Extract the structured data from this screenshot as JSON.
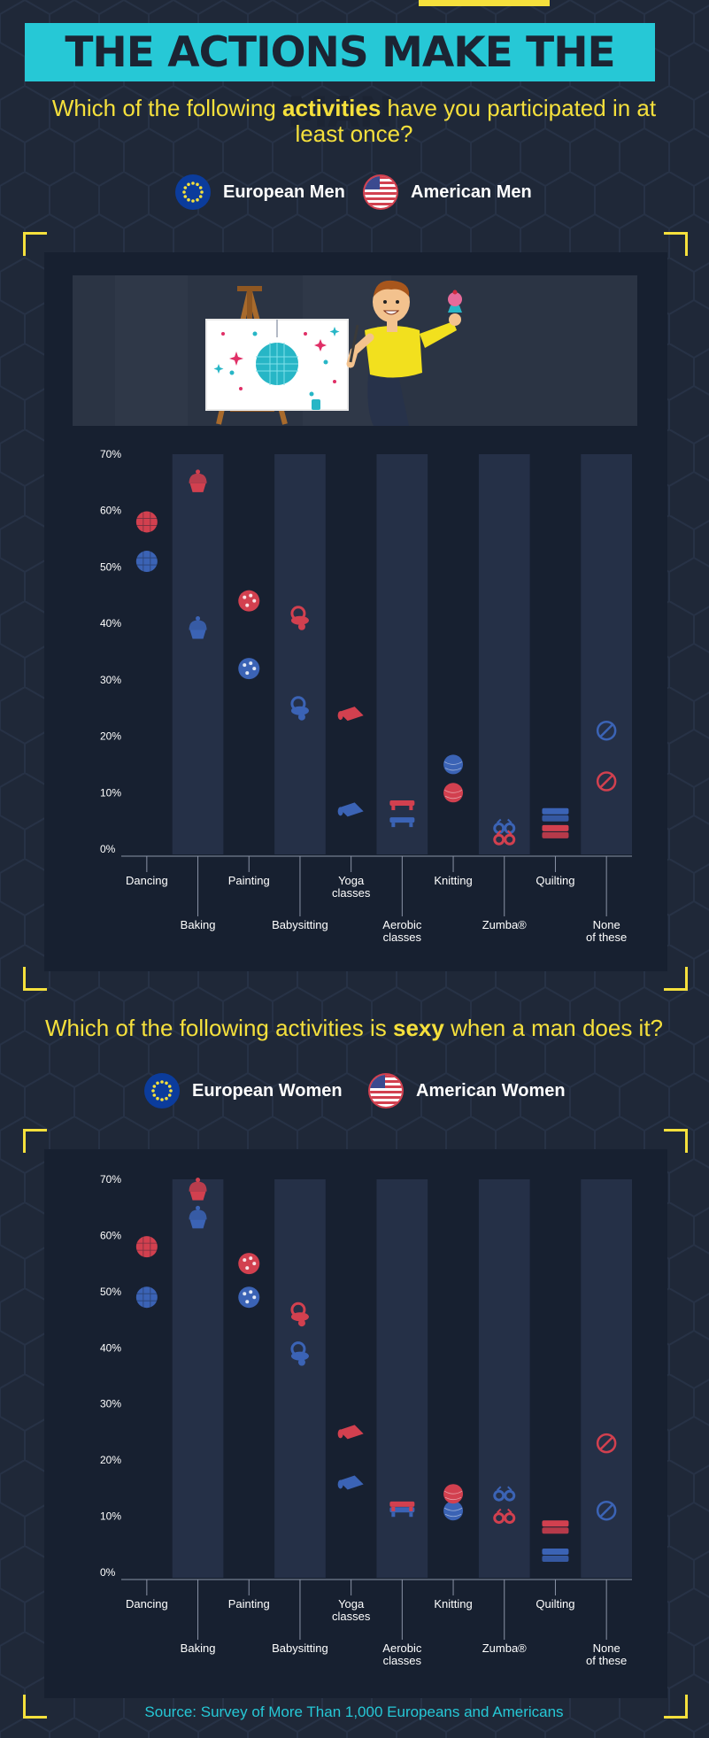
{
  "title": "THE ACTIONS MAKE THE MAN",
  "q1": {
    "pre": "Which of the following ",
    "em": "activities",
    "post": " have you participated in at least once?"
  },
  "legend1": {
    "eu": "European Men",
    "us": "American Men"
  },
  "q2": {
    "pre": "Which of the following activities is ",
    "em": "sexy",
    "post": " when a man does it?"
  },
  "legend2": {
    "eu": "European Women",
    "us": "American Women"
  },
  "source": "Source: Survey of More Than 1,000 Europeans and Americans",
  "colors": {
    "eu": "#3b63b5",
    "us": "#d2404f",
    "accent": "#f5e03c",
    "teal": "#26c8d6",
    "bg": "#1f2838",
    "panel": "#172030"
  },
  "chart_data": [
    {
      "type": "scatter",
      "title": "Which of the following activities have you participated in at least once?",
      "categories": [
        "Dancing",
        "Baking",
        "Painting",
        "Babysitting",
        "Yoga classes",
        "Aerobic classes",
        "Knitting",
        "Zumba®",
        "Quilting",
        "None of these"
      ],
      "icons": [
        "disco-ball-icon",
        "cupcake-icon",
        "palette-icon",
        "pacifier-icon",
        "yoga-mat-icon",
        "step-platform-icon",
        "yarn-ball-icon",
        "glasses-icon",
        "quilt-stack-icon",
        "none-icon"
      ],
      "yticks": [
        "0%",
        "10%",
        "20%",
        "30%",
        "40%",
        "50%",
        "60%",
        "70%"
      ],
      "ylim": [
        0,
        70
      ],
      "grid": false,
      "legend": "top",
      "series": [
        {
          "name": "European Men",
          "values": [
            51,
            39,
            32,
            25,
            7,
            5,
            15,
            4,
            6,
            21
          ]
        },
        {
          "name": "American Men",
          "values": [
            58,
            65,
            44,
            41,
            24,
            8,
            10,
            2,
            3,
            12
          ]
        }
      ]
    },
    {
      "type": "scatter",
      "title": "Which of the following activities is sexy when a man does it?",
      "categories": [
        "Dancing",
        "Baking",
        "Painting",
        "Babysitting",
        "Yoga classes",
        "Aerobic classes",
        "Knitting",
        "Zumba®",
        "Quilting",
        "None of these"
      ],
      "icons": [
        "disco-ball-icon",
        "cupcake-icon",
        "palette-icon",
        "pacifier-icon",
        "yoga-mat-icon",
        "step-platform-icon",
        "yarn-ball-icon",
        "glasses-icon",
        "quilt-stack-icon",
        "none-icon"
      ],
      "yticks": [
        "0%",
        "10%",
        "20%",
        "30%",
        "40%",
        "50%",
        "60%",
        "70%"
      ],
      "ylim": [
        0,
        70
      ],
      "grid": false,
      "legend": "top",
      "series": [
        {
          "name": "European Women",
          "values": [
            49,
            63,
            49,
            39,
            16,
            11,
            11,
            14,
            3,
            11
          ]
        },
        {
          "name": "American Women",
          "values": [
            58,
            68,
            55,
            46,
            25,
            12,
            14,
            10,
            8,
            23
          ]
        }
      ]
    }
  ]
}
